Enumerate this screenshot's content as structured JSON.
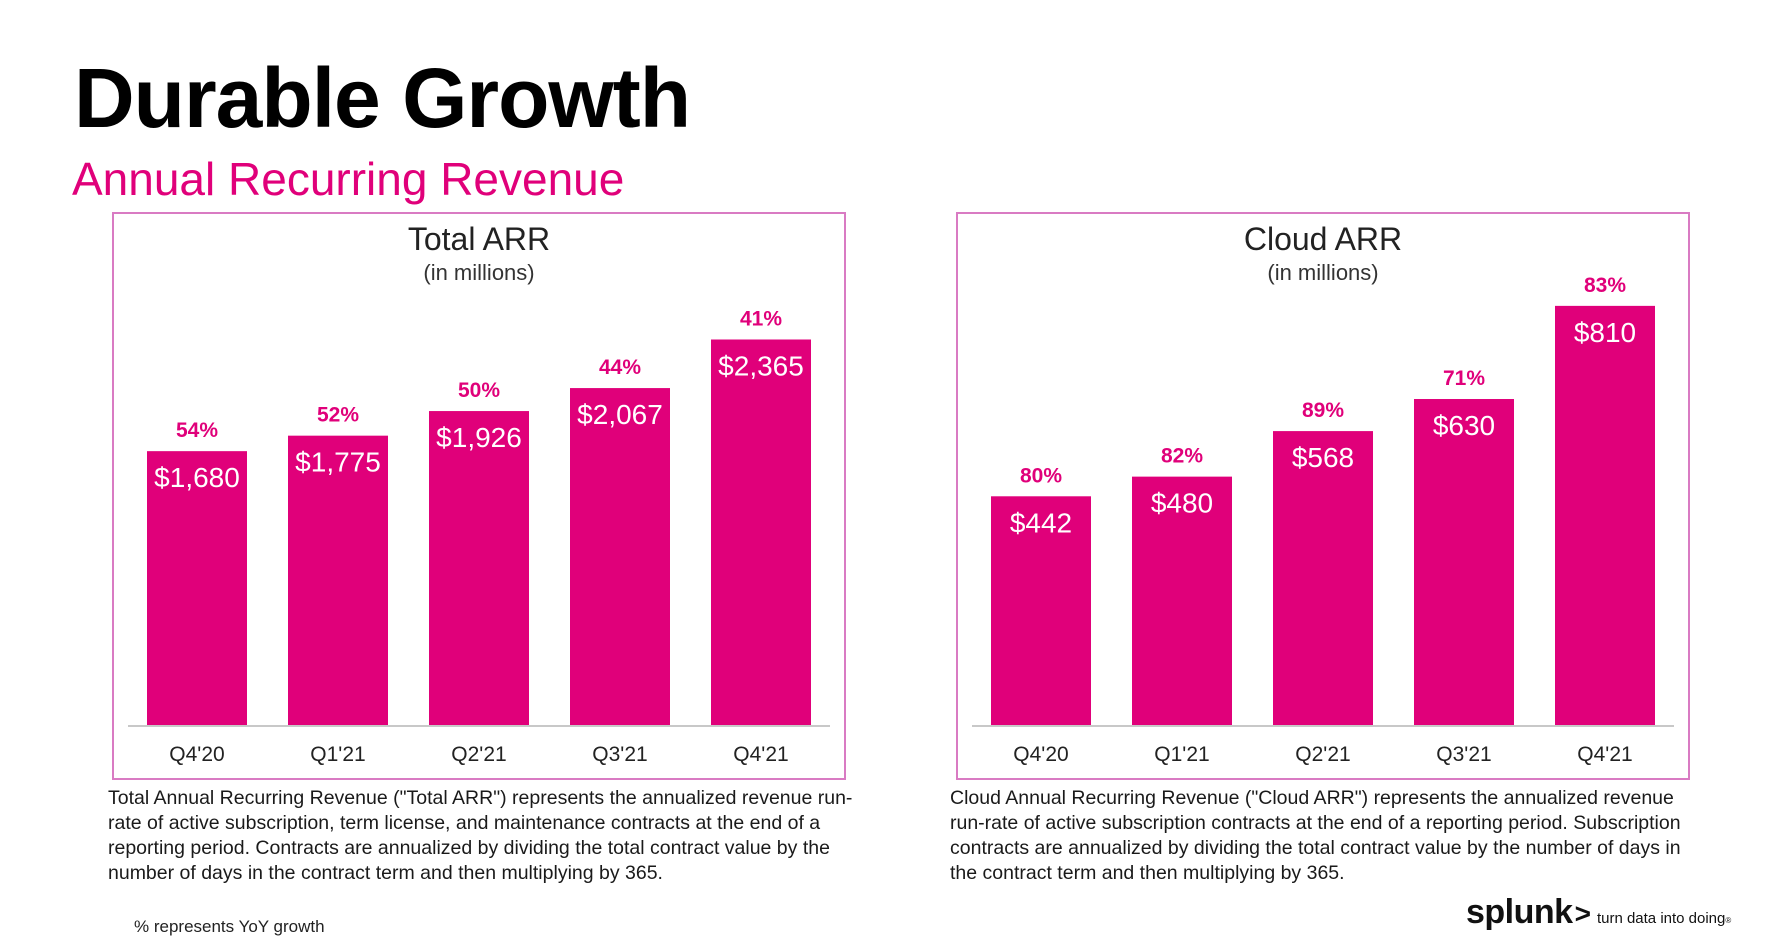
{
  "page": {
    "title": "Durable Growth",
    "subtitle": "Annual Recurring Revenue",
    "accent_color": "#e0007a"
  },
  "chart_data": [
    {
      "type": "bar",
      "title": "Total ARR",
      "unit_label": "(in millions)",
      "categories": [
        "Q4'20",
        "Q1'21",
        "Q2'21",
        "Q3'21",
        "Q4'21"
      ],
      "values": [
        1680,
        1775,
        1926,
        2067,
        2365
      ],
      "value_labels": [
        "$1,680",
        "$1,775",
        "$1,926",
        "$2,067",
        "$2,365"
      ],
      "growth_labels": [
        "54%",
        "52%",
        "50%",
        "44%",
        "41%"
      ],
      "ylim": [
        0,
        2730
      ],
      "grid": false,
      "legend": "none",
      "bar_color": "#e0007a"
    },
    {
      "type": "bar",
      "title": "Cloud ARR",
      "unit_label": "(in millions)",
      "categories": [
        "Q4'20",
        "Q1'21",
        "Q2'21",
        "Q3'21",
        "Q4'21"
      ],
      "values": [
        442,
        480,
        568,
        630,
        810
      ],
      "value_labels": [
        "$442",
        "$480",
        "$568",
        "$630",
        "$810"
      ],
      "growth_labels": [
        "80%",
        "82%",
        "89%",
        "71%",
        "83%"
      ],
      "ylim": [
        0,
        860
      ],
      "grid": false,
      "legend": "none",
      "bar_color": "#e0007a"
    }
  ],
  "descriptions": {
    "total": "Total Annual Recurring Revenue (\"Total ARR\") represents the annualized revenue run-rate of active subscription, term license, and maintenance contracts at the end of a reporting period. Contracts are annualized by dividing the total contract value by the number of days in the contract term and then multiplying by 365.",
    "cloud": "Cloud Annual Recurring Revenue (\"Cloud ARR\") represents the annualized revenue run-rate of active subscription contracts at the end of a reporting period. Subscription contracts are annualized by dividing the total contract value by the number of days in the contract term and then multiplying by 365."
  },
  "footnote": "% represents YoY growth",
  "logo": {
    "word": "splunk",
    "chevron": ">",
    "tagline": "turn data into doing",
    "trademark": "®"
  }
}
